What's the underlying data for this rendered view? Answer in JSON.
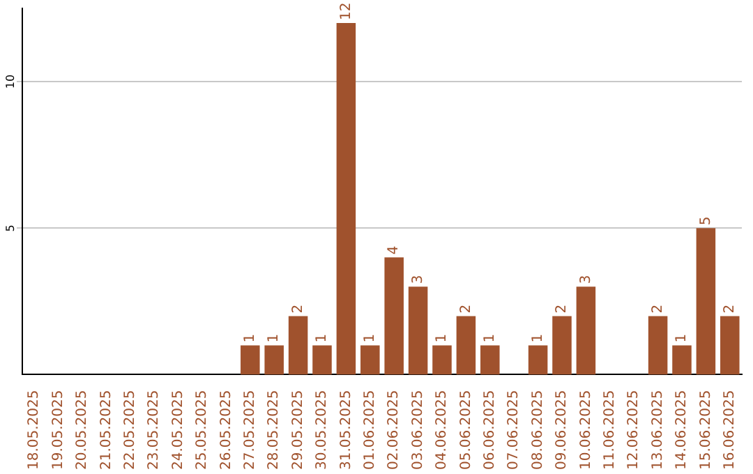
{
  "chart_data": {
    "type": "bar",
    "categories": [
      "18.05.2025",
      "19.05.2025",
      "20.05.2025",
      "21.05.2025",
      "22.05.2025",
      "23.05.2025",
      "24.05.2025",
      "25.05.2025",
      "26.05.2025",
      "27.05.2025",
      "28.05.2025",
      "29.05.2025",
      "30.05.2025",
      "31.05.2025",
      "01.06.2025",
      "02.06.2025",
      "03.06.2025",
      "04.06.2025",
      "05.06.2025",
      "06.06.2025",
      "07.06.2025",
      "08.06.2025",
      "09.06.2025",
      "10.06.2025",
      "11.06.2025",
      "12.06.2025",
      "13.06.2025",
      "14.06.2025",
      "15.06.2025",
      "16.06.2025"
    ],
    "values": [
      0,
      0,
      0,
      0,
      0,
      0,
      0,
      0,
      0,
      1,
      1,
      2,
      1,
      12,
      1,
      4,
      3,
      1,
      2,
      1,
      0,
      1,
      2,
      3,
      0,
      0,
      2,
      1,
      5,
      2
    ],
    "value_labels": [
      null,
      null,
      null,
      null,
      null,
      null,
      null,
      null,
      null,
      "1",
      "1",
      "2",
      "1",
      "12",
      "1",
      "4",
      "3",
      "1",
      "2",
      "1",
      null,
      "1",
      "2",
      "3",
      null,
      null,
      "2",
      "1",
      "5",
      "2"
    ],
    "color": "#a0522d",
    "ylim": [
      0,
      12.5
    ],
    "yticks": [
      5,
      10
    ],
    "grid": "y",
    "legend": false
  }
}
